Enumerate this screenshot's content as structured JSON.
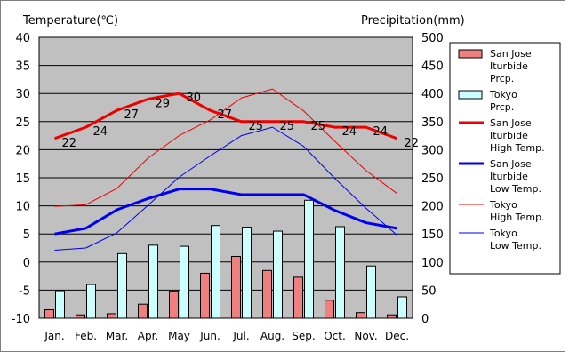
{
  "chart_data": {
    "type": "bar+line",
    "y1_label": "Temperature(℃)",
    "y2_label": "Precipitation(mm)",
    "y1_lim": [
      -10,
      40
    ],
    "y2_lim": [
      0,
      500
    ],
    "y1_ticks": [
      "40",
      "35",
      "30",
      "25",
      "20",
      "15",
      "10",
      "5",
      "0",
      "-5",
      "-10"
    ],
    "y2_ticks": [
      "500",
      "450",
      "400",
      "350",
      "300",
      "250",
      "200",
      "150",
      "100",
      "50",
      "0"
    ],
    "categories": [
      "Jan.",
      "Feb.",
      "Mar.",
      "Apr.",
      "May",
      "Jun.",
      "Jul.",
      "Aug.",
      "Sep.",
      "Oct.",
      "Nov.",
      "Dec."
    ],
    "grid": true,
    "legend_position": "right",
    "bar_series": [
      {
        "name": "San Jose Iturbide Prcp.",
        "legend_lines": [
          "San Jose",
          "Iturbide",
          "Prcp."
        ],
        "color": "#f08080",
        "values": [
          15,
          6,
          8,
          25,
          48,
          80,
          110,
          85,
          73,
          32,
          10,
          6
        ]
      },
      {
        "name": "Tokyo Prcp.",
        "legend_lines": [
          "Tokyo",
          "Prcp."
        ],
        "color": "#ccffff",
        "values": [
          49,
          60,
          115,
          130,
          128,
          165,
          162,
          155,
          210,
          163,
          93,
          38
        ]
      }
    ],
    "line_series": [
      {
        "name": "San Jose Iturbide High Temp.",
        "legend_lines": [
          "San Jose",
          "Iturbide",
          "High Temp."
        ],
        "color": "#ee0000",
        "width": 3,
        "values": [
          22,
          24,
          27,
          29,
          30,
          27,
          25,
          25,
          25,
          24,
          24,
          22
        ],
        "labels": [
          "22",
          "24",
          "27",
          "29",
          "30",
          "27",
          "25",
          "25",
          "25",
          "24",
          "24",
          "22"
        ]
      },
      {
        "name": "San Jose Iturbide Low Temp.",
        "legend_lines": [
          "San Jose",
          "Iturbide",
          "Low Temp."
        ],
        "color": "#0000ee",
        "width": 3,
        "values": [
          5,
          6,
          9.3,
          11.3,
          13,
          13,
          12,
          12,
          12,
          9.2,
          7,
          6
        ]
      },
      {
        "name": "Tokyo High Temp.",
        "legend_lines": [
          "Tokyo",
          "High Temp."
        ],
        "color": "#ee0000",
        "width": 1,
        "values": [
          9.9,
          10.2,
          13.1,
          18.5,
          22.5,
          25.3,
          29.2,
          30.8,
          26.9,
          21.5,
          16.3,
          12.2
        ]
      },
      {
        "name": "Tokyo Low Temp.",
        "legend_lines": [
          "Tokyo",
          "Low Temp."
        ],
        "color": "#0000ee",
        "width": 1,
        "values": [
          2.1,
          2.5,
          5.2,
          10.1,
          15.1,
          18.9,
          22.5,
          24.0,
          20.6,
          14.9,
          9.6,
          4.8
        ]
      }
    ]
  }
}
